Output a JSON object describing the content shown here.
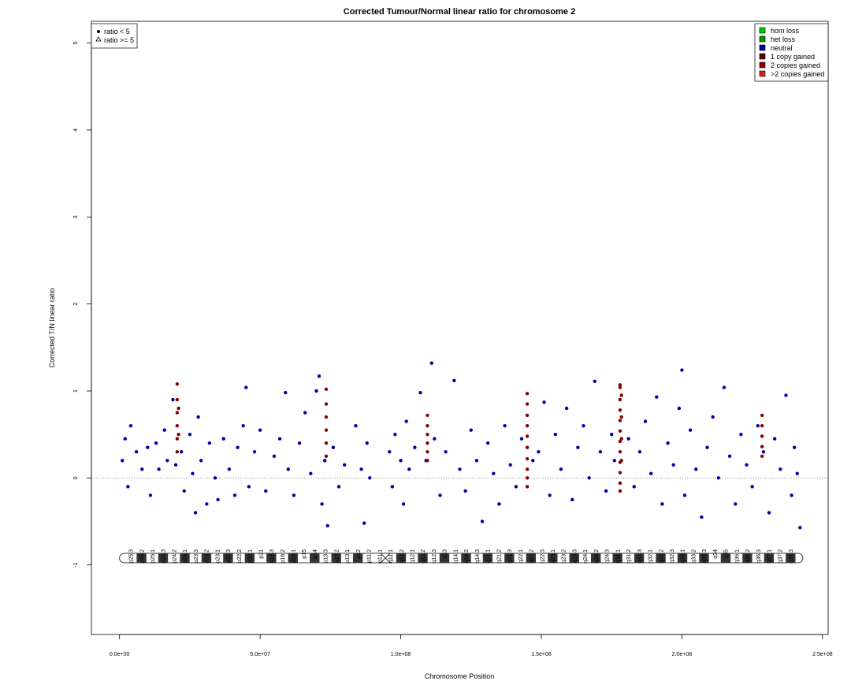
{
  "chart_data": {
    "type": "scatter",
    "title": "Corrected Tumour/Normal linear ratio for chromosome  2",
    "xlabel": "Chromosome Position",
    "ylabel": "Corrected T/N linear ratio",
    "xlim": [
      -10000000,
      252000000
    ],
    "ylim": [
      -1.8,
      5.25
    ],
    "x_ticks": [
      0,
      50000000,
      100000000,
      150000000,
      200000000,
      250000000
    ],
    "x_tick_labels": [
      "0.0e+00",
      "5.0e+07",
      "1.0e+08",
      "1.5e+08",
      "2.0e+08",
      "2.5e+08"
    ],
    "y_ticks": [
      -1,
      0,
      1,
      2,
      3,
      4,
      5
    ],
    "y_tick_labels": [
      "-1",
      "0",
      "1",
      "2",
      "3",
      "4",
      "5"
    ],
    "reference_line_y": 0,
    "shape_legend": {
      "placement": "top-left",
      "entries": [
        {
          "label": "ratio < 5",
          "shape": "filled-circle"
        },
        {
          "label": "ratio >= 5",
          "shape": "open-triangle"
        }
      ]
    },
    "color_legend": {
      "placement": "top-right",
      "entries": [
        {
          "label": "hom loss",
          "color": "#00cc00"
        },
        {
          "label": "het loss",
          "color": "#009900"
        },
        {
          "label": "neutral",
          "color": "#0000aa"
        },
        {
          "label": "1 copy gained",
          "color": "#5a0000"
        },
        {
          "label": "2 copies gained",
          "color": "#8b0000"
        },
        {
          "label": ">2 copies gained",
          "color": "#dd2222"
        }
      ]
    },
    "colors": {
      "neutral": "#0000aa",
      "gained": "#8b0000"
    },
    "series": [
      {
        "name": "neutral",
        "points": [
          [
            1000000,
            0.2
          ],
          [
            2000000,
            0.45
          ],
          [
            3000000,
            -0.1
          ],
          [
            4000000,
            0.6
          ],
          [
            6000000,
            0.3
          ],
          [
            8000000,
            0.1
          ],
          [
            10000000,
            0.35
          ],
          [
            11000000,
            -0.2
          ],
          [
            13000000,
            0.4
          ],
          [
            14000000,
            0.1
          ],
          [
            16000000,
            0.55
          ],
          [
            17000000,
            0.2
          ],
          [
            19000000,
            0.9
          ],
          [
            20000000,
            0.15
          ],
          [
            22000000,
            0.3
          ],
          [
            23000000,
            -0.15
          ],
          [
            25000000,
            0.5
          ],
          [
            26000000,
            0.05
          ],
          [
            27000000,
            -0.4
          ],
          [
            28000000,
            0.7
          ],
          [
            29000000,
            0.2
          ],
          [
            31000000,
            -0.3
          ],
          [
            32000000,
            0.4
          ],
          [
            34000000,
            0.0
          ],
          [
            35000000,
            -0.25
          ],
          [
            37000000,
            0.45
          ],
          [
            39000000,
            0.1
          ],
          [
            41000000,
            -0.2
          ],
          [
            42000000,
            0.35
          ],
          [
            44000000,
            0.6
          ],
          [
            45000000,
            1.04
          ],
          [
            46000000,
            -0.1
          ],
          [
            48000000,
            0.3
          ],
          [
            50000000,
            0.55
          ],
          [
            52000000,
            -0.15
          ],
          [
            55000000,
            0.25
          ],
          [
            57000000,
            0.45
          ],
          [
            59000000,
            0.98
          ],
          [
            60000000,
            0.1
          ],
          [
            62000000,
            -0.2
          ],
          [
            64000000,
            0.4
          ],
          [
            66000000,
            0.75
          ],
          [
            68000000,
            0.05
          ],
          [
            70000000,
            1.0
          ],
          [
            71000000,
            1.17
          ],
          [
            72000000,
            -0.3
          ],
          [
            73000000,
            0.2
          ],
          [
            74000000,
            -0.55
          ],
          [
            76000000,
            0.35
          ],
          [
            78000000,
            -0.1
          ],
          [
            80000000,
            0.15
          ],
          [
            84000000,
            0.6
          ],
          [
            86000000,
            0.1
          ],
          [
            87000000,
            -0.52
          ],
          [
            88000000,
            0.4
          ],
          [
            89000000,
            0.0
          ],
          [
            96000000,
            0.3
          ],
          [
            97000000,
            -0.1
          ],
          [
            98000000,
            0.5
          ],
          [
            100000000,
            0.2
          ],
          [
            101000000,
            -0.3
          ],
          [
            102000000,
            0.65
          ],
          [
            103000000,
            0.1
          ],
          [
            105000000,
            0.35
          ],
          [
            107000000,
            0.98
          ],
          [
            109000000,
            0.2
          ],
          [
            111000000,
            1.32
          ],
          [
            112000000,
            0.45
          ],
          [
            114000000,
            -0.2
          ],
          [
            116000000,
            0.3
          ],
          [
            119000000,
            1.12
          ],
          [
            121000000,
            0.1
          ],
          [
            123000000,
            -0.15
          ],
          [
            125000000,
            0.55
          ],
          [
            127000000,
            0.2
          ],
          [
            129000000,
            -0.5
          ],
          [
            131000000,
            0.4
          ],
          [
            133000000,
            0.05
          ],
          [
            135000000,
            -0.3
          ],
          [
            137000000,
            0.6
          ],
          [
            139000000,
            0.15
          ],
          [
            141000000,
            -0.1
          ],
          [
            143000000,
            0.45
          ],
          [
            147000000,
            0.2
          ],
          [
            149000000,
            0.3
          ],
          [
            151000000,
            0.87
          ],
          [
            153000000,
            -0.2
          ],
          [
            155000000,
            0.5
          ],
          [
            157000000,
            0.1
          ],
          [
            159000000,
            0.8
          ],
          [
            161000000,
            -0.25
          ],
          [
            163000000,
            0.35
          ],
          [
            165000000,
            0.6
          ],
          [
            167000000,
            0.0
          ],
          [
            169000000,
            1.11
          ],
          [
            171000000,
            0.3
          ],
          [
            173000000,
            -0.15
          ],
          [
            175000000,
            0.5
          ],
          [
            176000000,
            0.2
          ],
          [
            181000000,
            0.45
          ],
          [
            183000000,
            -0.1
          ],
          [
            185000000,
            0.3
          ],
          [
            187000000,
            0.65
          ],
          [
            189000000,
            0.05
          ],
          [
            191000000,
            0.93
          ],
          [
            193000000,
            -0.3
          ],
          [
            195000000,
            0.4
          ],
          [
            197000000,
            0.15
          ],
          [
            199000000,
            0.8
          ],
          [
            200000000,
            1.24
          ],
          [
            201000000,
            -0.2
          ],
          [
            203000000,
            0.55
          ],
          [
            205000000,
            0.1
          ],
          [
            207000000,
            -0.45
          ],
          [
            209000000,
            0.35
          ],
          [
            211000000,
            0.7
          ],
          [
            213000000,
            0.0
          ],
          [
            215000000,
            1.04
          ],
          [
            217000000,
            0.25
          ],
          [
            219000000,
            -0.3
          ],
          [
            221000000,
            0.5
          ],
          [
            223000000,
            0.15
          ],
          [
            225000000,
            -0.1
          ],
          [
            227000000,
            0.6
          ],
          [
            229000000,
            0.3
          ],
          [
            231000000,
            -0.4
          ],
          [
            233000000,
            0.45
          ],
          [
            235000000,
            0.1
          ],
          [
            237000000,
            0.95
          ],
          [
            239000000,
            -0.2
          ],
          [
            240000000,
            0.35
          ],
          [
            241000000,
            0.05
          ],
          [
            242000000,
            -0.57
          ]
        ]
      },
      {
        "name": "1 copy gained",
        "points": [
          [
            20500000,
            1.08
          ],
          [
            20500000,
            0.9
          ],
          [
            20500000,
            0.75
          ],
          [
            20500000,
            0.6
          ],
          [
            20500000,
            0.45
          ],
          [
            20500000,
            0.3
          ],
          [
            21000000,
            0.8
          ],
          [
            21000000,
            0.5
          ],
          [
            73500000,
            1.02
          ],
          [
            73500000,
            0.85
          ],
          [
            73500000,
            0.7
          ],
          [
            73500000,
            0.55
          ],
          [
            73500000,
            0.4
          ],
          [
            73500000,
            0.25
          ],
          [
            109500000,
            0.72
          ],
          [
            109500000,
            0.6
          ],
          [
            109500000,
            0.5
          ],
          [
            109500000,
            0.4
          ],
          [
            109500000,
            0.3
          ],
          [
            109500000,
            0.2
          ],
          [
            145000000,
            0.97
          ],
          [
            145000000,
            0.85
          ],
          [
            145000000,
            0.72
          ],
          [
            145000000,
            0.6
          ],
          [
            145000000,
            0.48
          ],
          [
            145000000,
            0.35
          ],
          [
            145000000,
            0.22
          ],
          [
            145000000,
            0.1
          ],
          [
            145000000,
            0.0
          ],
          [
            145000000,
            -0.1
          ],
          [
            178000000,
            1.07
          ],
          [
            178000000,
            1.04
          ],
          [
            178000000,
            0.9
          ],
          [
            178000000,
            0.78
          ],
          [
            178000000,
            0.66
          ],
          [
            178000000,
            0.54
          ],
          [
            178000000,
            0.42
          ],
          [
            178000000,
            0.3
          ],
          [
            178000000,
            0.18
          ],
          [
            178000000,
            0.06
          ],
          [
            178000000,
            -0.06
          ],
          [
            178000000,
            -0.15
          ],
          [
            178500000,
            0.95
          ],
          [
            178500000,
            0.7
          ],
          [
            178500000,
            0.45
          ],
          [
            178500000,
            0.2
          ],
          [
            228500000,
            0.72
          ],
          [
            228500000,
            0.6
          ],
          [
            228500000,
            0.48
          ],
          [
            228500000,
            0.36
          ],
          [
            228500000,
            0.25
          ]
        ]
      }
    ],
    "bands": [
      "p25.3",
      "p25.2",
      "p25.1",
      "p24.3",
      "p24.2",
      "p24.1",
      "p23.3",
      "p23.2",
      "p23.1",
      "p22.3",
      "p22.2",
      "p22.1",
      "p21",
      "p16.3",
      "p16.2",
      "p16.1",
      "p15",
      "p14",
      "p13.3",
      "p13.2",
      "p13.1",
      "p12",
      "p11.2",
      "p11.1",
      "q11.1",
      "q11.2",
      "q12.1",
      "q12.2",
      "q12.3",
      "q13",
      "q14.1",
      "q14.2",
      "q14.3",
      "q21.1",
      "q21.2",
      "q21.3",
      "q22.1",
      "q22.2",
      "q22.3",
      "q23.1",
      "q23.2",
      "q23.3",
      "q24.1",
      "q24.2",
      "q24.3",
      "q31.1",
      "q31.2",
      "q31.3",
      "q32.1",
      "q32.2",
      "q32.3",
      "q33.1",
      "q33.2",
      "q33.3",
      "q34",
      "q35",
      "q36.1",
      "q36.2",
      "q36.3",
      "q37.1",
      "q37.2",
      "q37.3"
    ]
  }
}
